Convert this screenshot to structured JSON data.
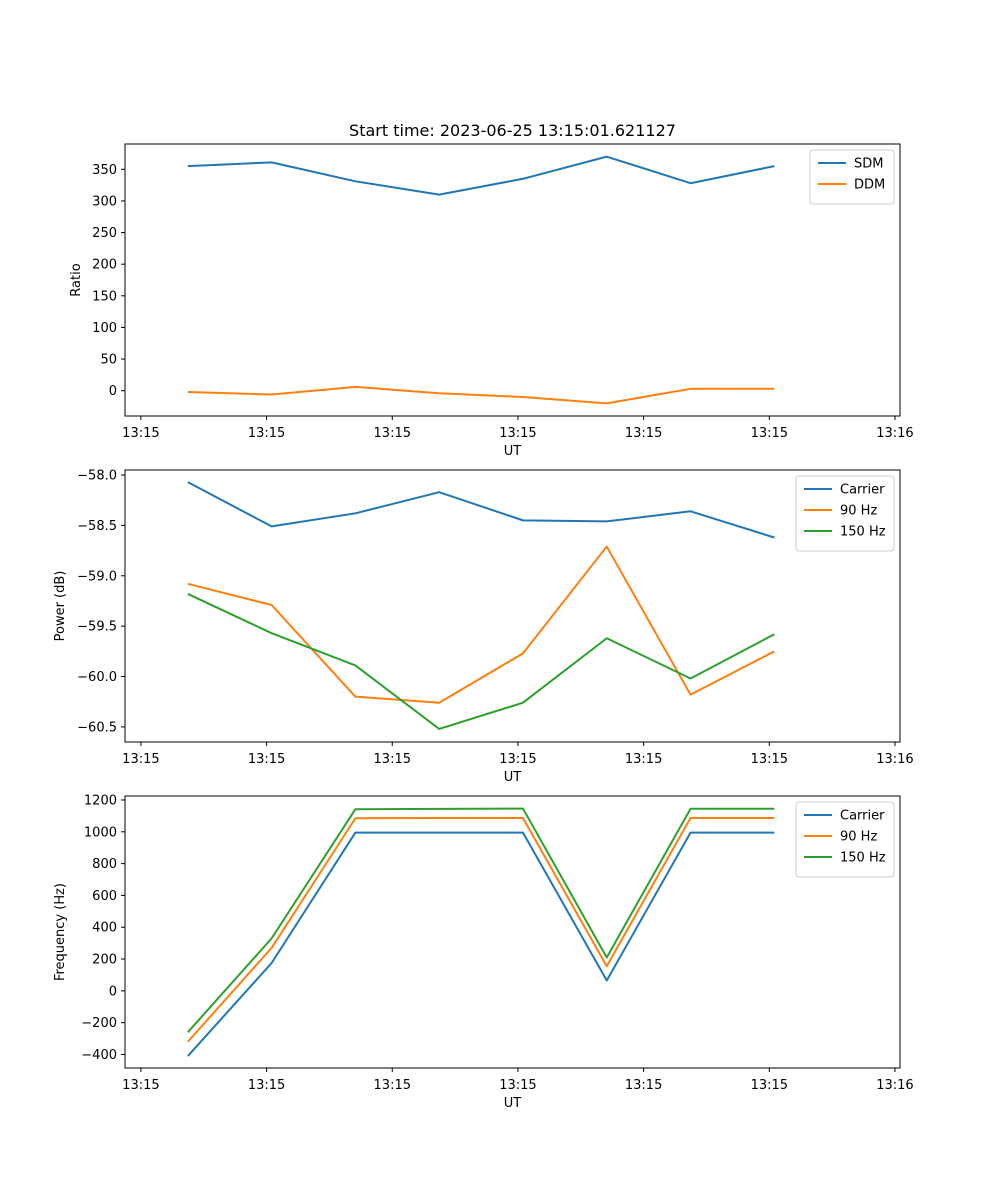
{
  "chart_data": [
    {
      "type": "line",
      "title": "Start time: 2023-06-25 13:15:01.621127",
      "xlabel": "UT",
      "ylabel": "Ratio",
      "x_tick_labels": [
        "13:15",
        "13:15",
        "13:15",
        "13:15",
        "13:15",
        "13:15",
        "13:16"
      ],
      "y_ticks": [
        0,
        50,
        100,
        150,
        200,
        250,
        300,
        350
      ],
      "ylim": [
        -40,
        390
      ],
      "legend_position": "top-right",
      "series": [
        {
          "name": "SDM",
          "color": "#1f77b4",
          "values": [
            355,
            361,
            331,
            310,
            335,
            370,
            328,
            355
          ]
        },
        {
          "name": "DDM",
          "color": "#ff7f0e",
          "values": [
            -2,
            -6,
            6,
            -4,
            -10,
            -20,
            3,
            3
          ]
        }
      ]
    },
    {
      "type": "line",
      "title": "",
      "xlabel": "UT",
      "ylabel": "Power (dB)",
      "x_tick_labels": [
        "13:15",
        "13:15",
        "13:15",
        "13:15",
        "13:15",
        "13:15",
        "13:16"
      ],
      "y_ticks": [
        -60.5,
        -60.0,
        -59.5,
        -59.0,
        -58.5,
        -58.0
      ],
      "y_tick_labels": [
        "−60.5",
        "−60.0",
        "−59.5",
        "−59.0",
        "−58.5",
        "−58.0"
      ],
      "ylim": [
        -60.65,
        -57.95
      ],
      "legend_position": "top-right",
      "series": [
        {
          "name": "Carrier",
          "color": "#1f77b4",
          "values": [
            -58.07,
            -58.51,
            -58.38,
            -58.17,
            -58.45,
            -58.46,
            -58.36,
            -58.62
          ]
        },
        {
          "name": "90 Hz",
          "color": "#ff7f0e",
          "values": [
            -59.08,
            -59.29,
            -60.2,
            -60.26,
            -59.77,
            -58.71,
            -60.18,
            -59.75
          ]
        },
        {
          "name": "150 Hz",
          "color": "#2ca02c",
          "values": [
            -59.18,
            -59.57,
            -59.89,
            -60.52,
            -60.26,
            -59.62,
            -60.02,
            -59.58
          ]
        }
      ]
    },
    {
      "type": "line",
      "title": "",
      "xlabel": "UT",
      "ylabel": "Frequency (Hz)",
      "x_tick_labels": [
        "13:15",
        "13:15",
        "13:15",
        "13:15",
        "13:15",
        "13:15",
        "13:16"
      ],
      "y_ticks": [
        -400,
        -200,
        0,
        200,
        400,
        600,
        800,
        1000,
        1200
      ],
      "y_tick_labels": [
        "−400",
        "−200",
        "0",
        "200",
        "400",
        "600",
        "800",
        "1000",
        "1200"
      ],
      "ylim": [
        -485,
        1225
      ],
      "legend_position": "top-right",
      "series": [
        {
          "name": "Carrier",
          "color": "#1f77b4",
          "values": [
            -410,
            175,
            995,
            995,
            995,
            65,
            995,
            995
          ]
        },
        {
          "name": "90 Hz",
          "color": "#ff7f0e",
          "values": [
            -320,
            270,
            1085,
            1087,
            1087,
            155,
            1087,
            1087
          ]
        },
        {
          "name": "150 Hz",
          "color": "#2ca02c",
          "values": [
            -260,
            330,
            1142,
            1144,
            1146,
            210,
            1145,
            1145
          ]
        }
      ]
    }
  ]
}
